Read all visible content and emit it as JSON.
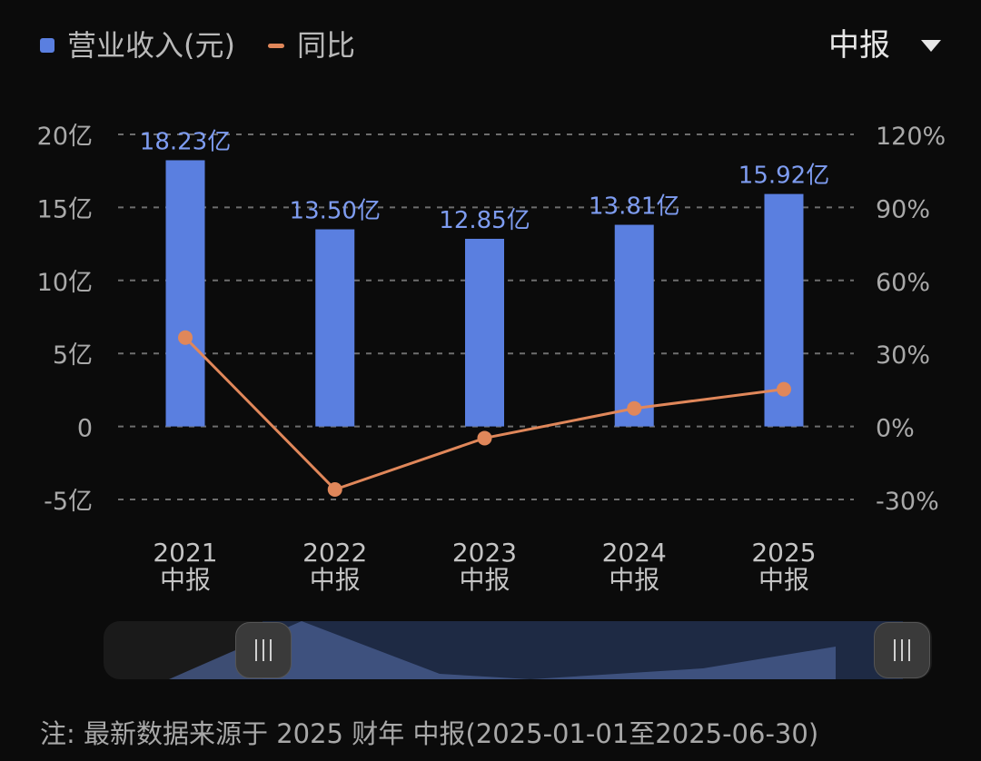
{
  "legend": {
    "bar_label": "营业收入(元)",
    "line_label": "同比",
    "bar_color": "#5a7fe0",
    "line_color": "#e0875a"
  },
  "period_selector": {
    "value": "中报"
  },
  "note": "注: 最新数据来源于 2025 财年 中报(2025-01-01至2025-06-30)",
  "chart_data": {
    "type": "bar",
    "categories": [
      "2021\n中报",
      "2022\n中报",
      "2023\n中报",
      "2024\n中报",
      "2025\n中报"
    ],
    "series": [
      {
        "name": "营业收入(元)",
        "type": "bar",
        "axis": "left",
        "values": [
          18.23,
          13.5,
          12.85,
          13.81,
          15.92
        ],
        "labels": [
          "18.23亿",
          "13.50亿",
          "12.85亿",
          "13.81亿",
          "15.92亿"
        ]
      },
      {
        "name": "同比",
        "type": "line",
        "axis": "right",
        "values": [
          36.5,
          -25.9,
          -4.8,
          7.4,
          15.3
        ]
      }
    ],
    "y_left": {
      "ticks": [
        20,
        15,
        10,
        5,
        0,
        -5
      ],
      "tick_labels": [
        "20亿",
        "15亿",
        "10亿",
        "5亿",
        "0",
        "-5亿"
      ],
      "ylim": [
        -5,
        20
      ]
    },
    "y_right": {
      "ticks": [
        120,
        90,
        60,
        30,
        0,
        -30
      ],
      "tick_labels": [
        "120%",
        "90%",
        "60%",
        "30%",
        "0%",
        "-30%"
      ],
      "ylim": [
        -30,
        120
      ]
    },
    "grid": true,
    "legend_position": "top-left"
  }
}
